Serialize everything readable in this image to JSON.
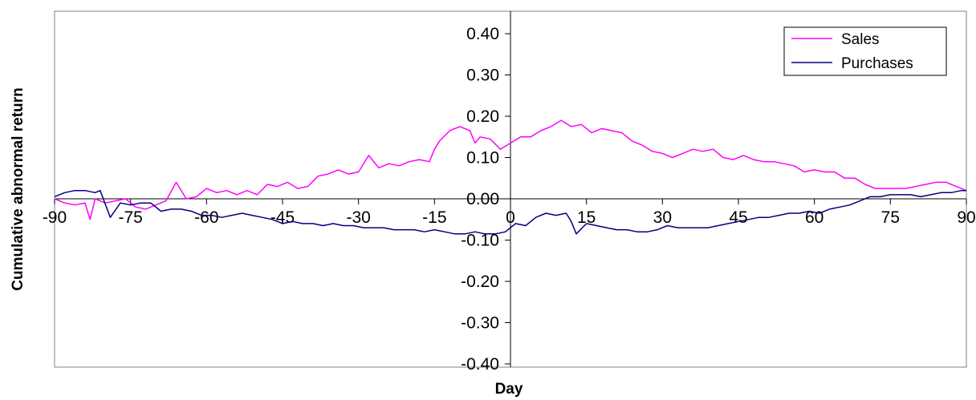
{
  "chart_data": {
    "type": "line",
    "title": "",
    "xlabel": "Day",
    "ylabel": "Cumulative abnormal return",
    "xlim": [
      -90,
      90
    ],
    "ylim": [
      -0.4,
      0.4
    ],
    "x_ticks": [
      "-90",
      "-75",
      "-60",
      "-45",
      "-30",
      "-15",
      "0",
      "15",
      "30",
      "45",
      "60",
      "75",
      "90"
    ],
    "y_ticks": [
      "0.40",
      "0.30",
      "0.20",
      "0.10",
      "0.00",
      "-0.10",
      "-0.20",
      "-0.30",
      "-0.40"
    ],
    "legend_position": "top-right",
    "grid": false,
    "series": [
      {
        "name": "Sales",
        "color": "#ff00ff",
        "points": [
          [
            -90,
            0.0
          ],
          [
            -88,
            -0.01
          ],
          [
            -86,
            -0.015
          ],
          [
            -84,
            -0.01
          ],
          [
            -83,
            -0.05
          ],
          [
            -82,
            0.0
          ],
          [
            -80,
            -0.01
          ],
          [
            -78,
            -0.005
          ],
          [
            -76,
            0.0
          ],
          [
            -74,
            -0.02
          ],
          [
            -72,
            -0.025
          ],
          [
            -70,
            -0.015
          ],
          [
            -68,
            -0.005
          ],
          [
            -66,
            0.04
          ],
          [
            -64,
            0.0
          ],
          [
            -62,
            0.005
          ],
          [
            -60,
            0.025
          ],
          [
            -58,
            0.015
          ],
          [
            -56,
            0.02
          ],
          [
            -54,
            0.01
          ],
          [
            -52,
            0.02
          ],
          [
            -50,
            0.01
          ],
          [
            -48,
            0.035
          ],
          [
            -46,
            0.03
          ],
          [
            -44,
            0.04
          ],
          [
            -42,
            0.025
          ],
          [
            -40,
            0.03
          ],
          [
            -38,
            0.055
          ],
          [
            -36,
            0.06
          ],
          [
            -34,
            0.07
          ],
          [
            -32,
            0.06
          ],
          [
            -30,
            0.065
          ],
          [
            -28,
            0.105
          ],
          [
            -26,
            0.075
          ],
          [
            -24,
            0.085
          ],
          [
            -22,
            0.08
          ],
          [
            -20,
            0.09
          ],
          [
            -18,
            0.095
          ],
          [
            -16,
            0.09
          ],
          [
            -15,
            0.12
          ],
          [
            -14,
            0.14
          ],
          [
            -12,
            0.165
          ],
          [
            -10,
            0.175
          ],
          [
            -8,
            0.165
          ],
          [
            -7,
            0.135
          ],
          [
            -6,
            0.15
          ],
          [
            -4,
            0.145
          ],
          [
            -2,
            0.12
          ],
          [
            0,
            0.135
          ],
          [
            2,
            0.15
          ],
          [
            4,
            0.15
          ],
          [
            6,
            0.165
          ],
          [
            8,
            0.175
          ],
          [
            10,
            0.19
          ],
          [
            12,
            0.175
          ],
          [
            14,
            0.18
          ],
          [
            16,
            0.16
          ],
          [
            18,
            0.17
          ],
          [
            20,
            0.165
          ],
          [
            22,
            0.16
          ],
          [
            24,
            0.14
          ],
          [
            26,
            0.13
          ],
          [
            28,
            0.115
          ],
          [
            30,
            0.11
          ],
          [
            32,
            0.1
          ],
          [
            34,
            0.11
          ],
          [
            36,
            0.12
          ],
          [
            38,
            0.115
          ],
          [
            40,
            0.12
          ],
          [
            42,
            0.1
          ],
          [
            44,
            0.095
          ],
          [
            46,
            0.105
          ],
          [
            48,
            0.095
          ],
          [
            50,
            0.09
          ],
          [
            52,
            0.09
          ],
          [
            54,
            0.085
          ],
          [
            56,
            0.08
          ],
          [
            58,
            0.065
          ],
          [
            60,
            0.07
          ],
          [
            62,
            0.065
          ],
          [
            64,
            0.065
          ],
          [
            66,
            0.05
          ],
          [
            68,
            0.05
          ],
          [
            70,
            0.035
          ],
          [
            72,
            0.025
          ],
          [
            74,
            0.025
          ],
          [
            76,
            0.025
          ],
          [
            78,
            0.025
          ],
          [
            80,
            0.03
          ],
          [
            82,
            0.035
          ],
          [
            84,
            0.04
          ],
          [
            86,
            0.04
          ],
          [
            88,
            0.03
          ],
          [
            90,
            0.02
          ]
        ]
      },
      {
        "name": "Purchases",
        "color": "#000080",
        "points": [
          [
            -90,
            0.005
          ],
          [
            -88,
            0.015
          ],
          [
            -86,
            0.02
          ],
          [
            -84,
            0.02
          ],
          [
            -82,
            0.015
          ],
          [
            -81,
            0.02
          ],
          [
            -79,
            -0.045
          ],
          [
            -77,
            -0.01
          ],
          [
            -75,
            -0.015
          ],
          [
            -73,
            -0.01
          ],
          [
            -71,
            -0.01
          ],
          [
            -69,
            -0.03
          ],
          [
            -67,
            -0.025
          ],
          [
            -65,
            -0.025
          ],
          [
            -63,
            -0.03
          ],
          [
            -61,
            -0.04
          ],
          [
            -59,
            -0.04
          ],
          [
            -57,
            -0.045
          ],
          [
            -55,
            -0.04
          ],
          [
            -53,
            -0.035
          ],
          [
            -51,
            -0.04
          ],
          [
            -49,
            -0.045
          ],
          [
            -47,
            -0.05
          ],
          [
            -45,
            -0.06
          ],
          [
            -43,
            -0.055
          ],
          [
            -41,
            -0.06
          ],
          [
            -39,
            -0.06
          ],
          [
            -37,
            -0.065
          ],
          [
            -35,
            -0.06
          ],
          [
            -33,
            -0.065
          ],
          [
            -31,
            -0.065
          ],
          [
            -29,
            -0.07
          ],
          [
            -27,
            -0.07
          ],
          [
            -25,
            -0.07
          ],
          [
            -23,
            -0.075
          ],
          [
            -21,
            -0.075
          ],
          [
            -19,
            -0.075
          ],
          [
            -17,
            -0.08
          ],
          [
            -15,
            -0.075
          ],
          [
            -13,
            -0.08
          ],
          [
            -11,
            -0.085
          ],
          [
            -9,
            -0.085
          ],
          [
            -7,
            -0.08
          ],
          [
            -5,
            -0.085
          ],
          [
            -3,
            -0.085
          ],
          [
            -1,
            -0.08
          ],
          [
            1,
            -0.06
          ],
          [
            3,
            -0.065
          ],
          [
            5,
            -0.045
          ],
          [
            7,
            -0.035
          ],
          [
            9,
            -0.04
          ],
          [
            11,
            -0.035
          ],
          [
            12,
            -0.055
          ],
          [
            13,
            -0.085
          ],
          [
            15,
            -0.06
          ],
          [
            17,
            -0.065
          ],
          [
            19,
            -0.07
          ],
          [
            21,
            -0.075
          ],
          [
            23,
            -0.075
          ],
          [
            25,
            -0.08
          ],
          [
            27,
            -0.08
          ],
          [
            29,
            -0.075
          ],
          [
            31,
            -0.065
          ],
          [
            33,
            -0.07
          ],
          [
            35,
            -0.07
          ],
          [
            37,
            -0.07
          ],
          [
            39,
            -0.07
          ],
          [
            41,
            -0.065
          ],
          [
            43,
            -0.06
          ],
          [
            45,
            -0.055
          ],
          [
            47,
            -0.05
          ],
          [
            49,
            -0.045
          ],
          [
            51,
            -0.045
          ],
          [
            53,
            -0.04
          ],
          [
            55,
            -0.035
          ],
          [
            57,
            -0.035
          ],
          [
            59,
            -0.03
          ],
          [
            61,
            -0.035
          ],
          [
            63,
            -0.025
          ],
          [
            65,
            -0.02
          ],
          [
            67,
            -0.015
          ],
          [
            69,
            -0.005
          ],
          [
            71,
            0.005
          ],
          [
            73,
            0.005
          ],
          [
            75,
            0.01
          ],
          [
            77,
            0.01
          ],
          [
            79,
            0.01
          ],
          [
            81,
            0.005
          ],
          [
            83,
            0.01
          ],
          [
            85,
            0.015
          ],
          [
            87,
            0.015
          ],
          [
            89,
            0.02
          ],
          [
            90,
            0.02
          ]
        ]
      }
    ]
  }
}
